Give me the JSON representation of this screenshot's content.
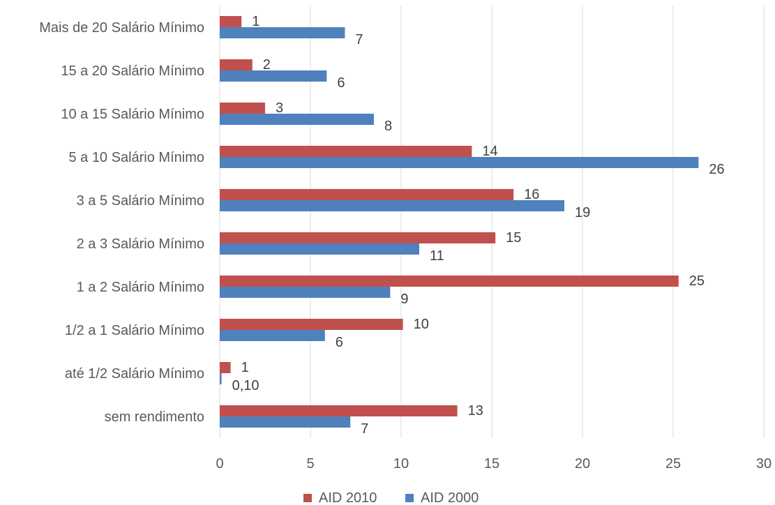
{
  "chart_data": {
    "type": "bar",
    "orientation": "horizontal",
    "categories": [
      "sem rendimento",
      "até 1/2 Salário Mínimo",
      "1/2 a 1 Salário Mínimo",
      "1 a 2 Salário Mínimo",
      "2 a 3 Salário Mínimo",
      "3 a 5 Salário Mínimo",
      "5 a 10 Salário Mínimo",
      "10 a 15 Salário Mínimo",
      "15 a 20 Salário Mínimo",
      "Mais de 20 Salário Mínimo"
    ],
    "series": [
      {
        "name": "AID 2010",
        "color": "#C0504D",
        "values": [
          13.1,
          0.6,
          10.1,
          25.3,
          15.2,
          16.2,
          13.9,
          2.5,
          1.8,
          1.2
        ],
        "labels": [
          "13",
          "1",
          "10",
          "25",
          "15",
          "16",
          "14",
          "3",
          "2",
          "1"
        ]
      },
      {
        "name": "AID 2000",
        "color": "#4F81BD",
        "values": [
          7.2,
          0.1,
          5.8,
          9.4,
          11.0,
          19.0,
          26.4,
          8.5,
          5.9,
          6.9
        ],
        "labels": [
          "7",
          "0,10",
          "6",
          "9",
          "11",
          "19",
          "26",
          "8",
          "6",
          "7"
        ]
      }
    ],
    "x_ticks": [
      "0",
      "5",
      "10",
      "15",
      "20",
      "25",
      "30"
    ],
    "xlim": [
      0,
      30
    ],
    "grid": "vertical",
    "legend": "bottom-center"
  }
}
